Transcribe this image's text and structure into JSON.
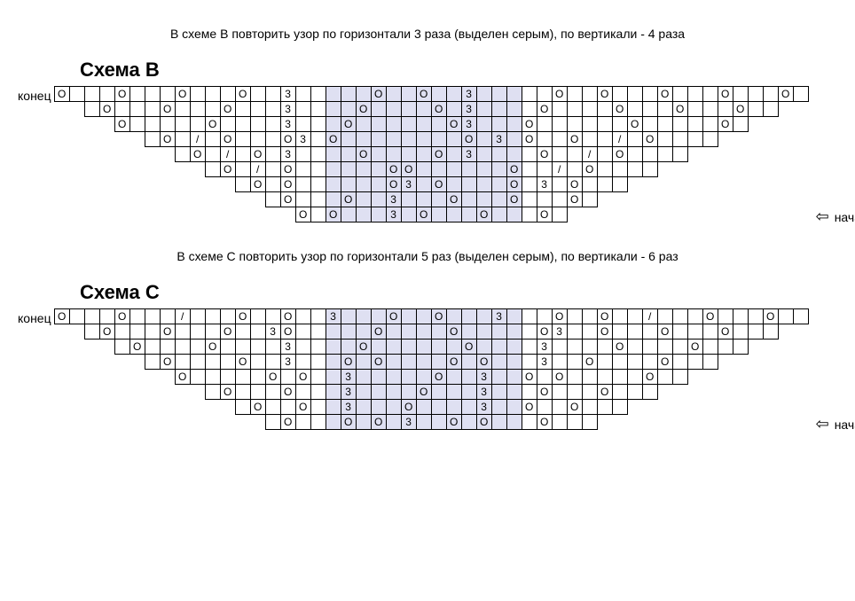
{
  "schemeB": {
    "caption": "В схеме B повторить узор по горизонтали 3 раза (выделен серым), по вертикали - 4 раза",
    "title": "Схема B",
    "endLabel": "конец",
    "startLabel": "начало",
    "hlStart": 19,
    "hlEnd": 31,
    "totalCols": 50,
    "rows": [
      {
        "start": 1,
        "end": 50,
        "syms": {
          "1": "O",
          "5": "O",
          "9": "O",
          "13": "O",
          "16": "3",
          "22": "O",
          "25": "O",
          "28": "3",
          "34": "O",
          "37": "O",
          "41": "O",
          "45": "O",
          "49": "O"
        }
      },
      {
        "start": 3,
        "end": 48,
        "syms": {
          "4": "O",
          "8": "O",
          "12": "O",
          "16": "3",
          "21": "O",
          "26": "O",
          "28": "3",
          "33": "O",
          "38": "O",
          "42": "O",
          "46": "O"
        }
      },
      {
        "start": 5,
        "end": 46,
        "syms": {
          "5": "O",
          "11": "O",
          "16": "3",
          "20": "O",
          "27": "O",
          "28": "3",
          "32": "O",
          "39": "O",
          "45": "O"
        }
      },
      {
        "start": 7,
        "end": 44,
        "syms": {
          "8": "O",
          "10": "/",
          "12": "O",
          "16": "O",
          "17": "3",
          "19": "O",
          "28": "O",
          "30": "3",
          "32": "O",
          "35": "O",
          "38": "/",
          "40": "O"
        }
      },
      {
        "start": 9,
        "end": 42,
        "syms": {
          "10": "O",
          "12": "/",
          "14": "O",
          "16": "3",
          "21": "O",
          "26": "O",
          "28": "3",
          "33": "O",
          "36": "/",
          "38": "O"
        }
      },
      {
        "start": 11,
        "end": 40,
        "syms": {
          "12": "O",
          "14": "/",
          "16": "O",
          "23": "O",
          "24": "O",
          "31": "O",
          "34": "/",
          "36": "O"
        }
      },
      {
        "start": 13,
        "end": 38,
        "syms": {
          "14": "O",
          "16": "O",
          "23": "O",
          "24": "3",
          "26": "O",
          "31": "O",
          "33": "3",
          "35": "O"
        }
      },
      {
        "start": 15,
        "end": 36,
        "syms": {
          "16": "O",
          "20": "O",
          "23": "3",
          "27": "O",
          "31": "O",
          "35": "O"
        }
      },
      {
        "start": 17,
        "end": 34,
        "syms": {
          "17": "O",
          "19": "O",
          "23": "3",
          "25": "O",
          "29": "O",
          "33": "O"
        },
        "last": true
      }
    ]
  },
  "schemeC": {
    "caption": "В схеме C повторить узор по горизонтали 5 раз (выделен серым), по вертикали - 6 раз",
    "title": "Схема C",
    "endLabel": "конец",
    "startLabel": "начало",
    "hlStart": 19,
    "hlEnd": 31,
    "totalCols": 50,
    "rows": [
      {
        "start": 1,
        "end": 50,
        "syms": {
          "1": "O",
          "5": "O",
          "9": "/",
          "13": "O",
          "16": "O",
          "19": "3",
          "23": "O",
          "26": "O",
          "30": "3",
          "34": "O",
          "37": "O",
          "40": "/",
          "44": "O",
          "48": "O"
        }
      },
      {
        "start": 3,
        "end": 48,
        "syms": {
          "4": "O",
          "8": "O",
          "12": "O",
          "15": "3",
          "16": "O",
          "22": "O",
          "27": "O",
          "33": "O",
          "34": "3",
          "37": "O",
          "41": "O",
          "45": "O"
        }
      },
      {
        "start": 5,
        "end": 46,
        "syms": {
          "6": "O",
          "11": "O",
          "16": "3",
          "21": "O",
          "28": "O",
          "33": "3",
          "38": "O",
          "43": "O"
        }
      },
      {
        "start": 7,
        "end": 44,
        "syms": {
          "8": "O",
          "13": "O",
          "16": "3",
          "20": "O",
          "22": "O",
          "27": "O",
          "29": "O",
          "33": "3",
          "36": "O",
          "41": "O"
        }
      },
      {
        "start": 9,
        "end": 42,
        "syms": {
          "9": "O",
          "15": "O",
          "17": "O",
          "20": "3",
          "26": "O",
          "29": "3",
          "32": "O",
          "34": "O",
          "40": "O"
        }
      },
      {
        "start": 11,
        "end": 40,
        "syms": {
          "12": "O",
          "16": "O",
          "20": "3",
          "25": "O",
          "29": "3",
          "33": "O",
          "37": "O"
        }
      },
      {
        "start": 13,
        "end": 38,
        "syms": {
          "14": "O",
          "17": "O",
          "20": "3",
          "24": "O",
          "29": "3",
          "32": "O",
          "35": "O"
        }
      },
      {
        "start": 15,
        "end": 36,
        "syms": {
          "16": "O",
          "20": "O",
          "22": "O",
          "24": "3",
          "27": "O",
          "29": "O",
          "33": "O"
        },
        "last": true
      }
    ]
  }
}
